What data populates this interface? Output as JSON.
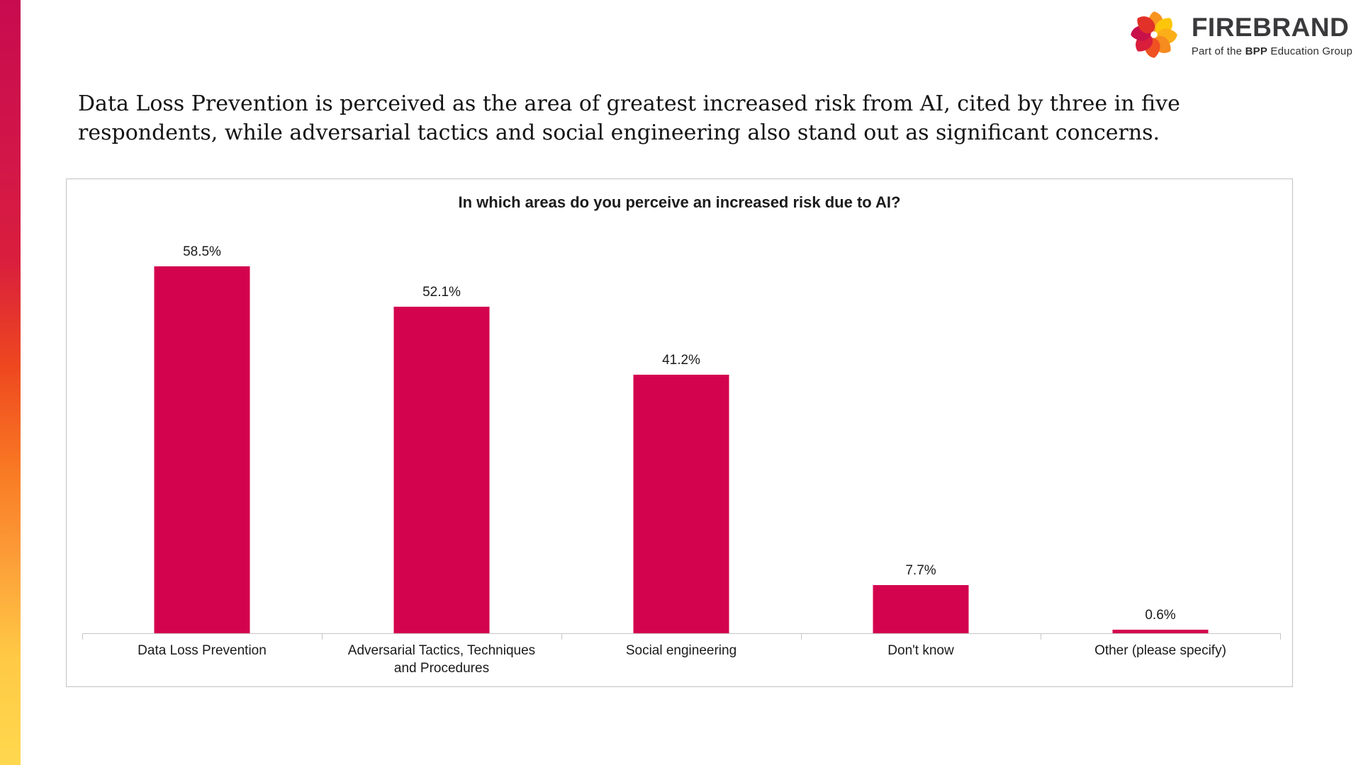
{
  "brand": {
    "name": "FIREBRAND",
    "tagline_prefix": "Part of the ",
    "tagline_bold": "BPP",
    "tagline_suffix": " Education Group",
    "logotype_color": "#3a3a3c",
    "mark_colors": [
      "#f7941e",
      "#fdc60b",
      "#fbae17",
      "#f68b1f",
      "#ef5123",
      "#d91e3c",
      "#c8104b",
      "#e23128"
    ],
    "side_gradient": [
      "#c70b4f",
      "#ee481f",
      "#f97b24",
      "#ffd84e"
    ]
  },
  "headline": {
    "lines": [
      "Data Loss Prevention is perceived as the area of greatest increased risk from AI, cited by three in five",
      "respondents, while adversarial tactics and social engineering also stand out as significant concerns."
    ]
  },
  "chart_data": {
    "type": "bar",
    "title": "In which areas do you perceive an increased risk due to AI?",
    "categories": [
      "Data Loss Prevention",
      "Adversarial Tactics, Techniques\nand Procedures",
      "Social engineering",
      "Don't know",
      "Other (please specify)"
    ],
    "values": [
      58.5,
      52.1,
      41.2,
      7.7,
      0.6
    ],
    "value_labels": [
      "58.5%",
      "52.1%",
      "41.2%",
      "7.7%",
      "0.6%"
    ],
    "bar_color": "#d4034e",
    "axis_color": "#c6c6c6",
    "xlabel": "",
    "ylabel": "",
    "ylim": [
      0,
      70
    ],
    "grid": false,
    "legend": null
  }
}
